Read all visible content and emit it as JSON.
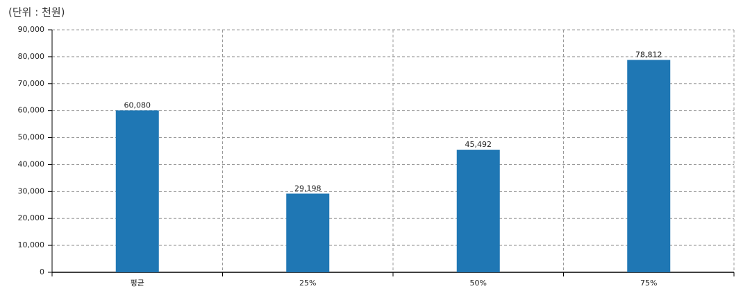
{
  "chart_data": {
    "type": "bar",
    "title": "(단위 : 천원)",
    "categories": [
      "평균",
      "25%",
      "50%",
      "75%"
    ],
    "values": [
      60080,
      29198,
      45492,
      78812
    ],
    "value_labels": [
      "60,080",
      "29,198",
      "45,492",
      "78,812"
    ],
    "color": "#1f77b4",
    "ylim": [
      0,
      90000
    ],
    "yticks": [
      0,
      {
        "value": 10000,
        "label": "10,000"
      },
      {
        "value": 20000,
        "label": "20,000"
      },
      {
        "value": 30000,
        "label": "30,000"
      },
      {
        "value": 40000,
        "label": "40,000"
      },
      {
        "value": 50000,
        "label": "50,000"
      },
      {
        "value": 60000,
        "label": "60,000"
      },
      {
        "value": 70000,
        "label": "70,000"
      },
      {
        "value": 80000,
        "label": "80,000"
      },
      {
        "value": 90000,
        "label": "90,000"
      }
    ],
    "grid": true
  }
}
